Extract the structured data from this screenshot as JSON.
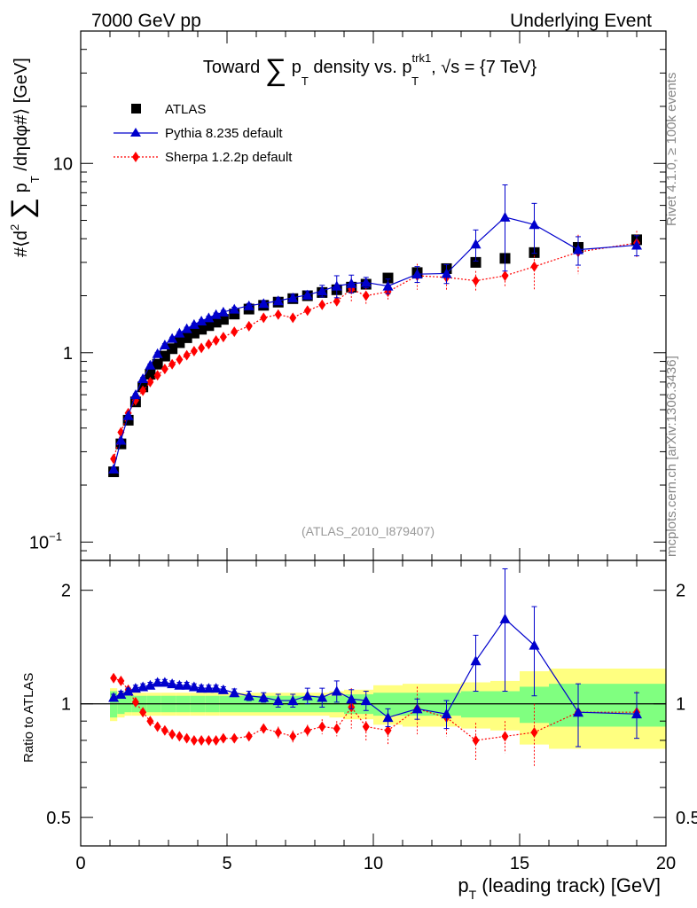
{
  "header": {
    "left": "7000 GeV pp",
    "right": "Underlying Event"
  },
  "side_labels": {
    "rivet": "Rivet 4.1.0, ≥ 100k events",
    "mcplots": "mcplots.cern.ch [arXiv:1306.3436]"
  },
  "chart_data": [
    {
      "type": "scatter",
      "title": "Toward ∑ p_T density vs. p_T^trk1, √s = {7 TeV}",
      "title_parts": {
        "word1": "Toward",
        "sum": "∑",
        "p": "p",
        "sub_T": "T",
        "word2": "density vs.",
        "p2": "p",
        "sup_trk1": "trk1",
        "sub_T2": "T",
        "energy": ", √s = {7 TeV}"
      },
      "ylabel": "#⟨d² ∑ p_T /dηdφ#⟩ [GeV]",
      "ylabel_parts": {
        "prefix": "#⟨d",
        "sq": "2",
        "sum": "∑",
        "p": "p",
        "sub_T": "T",
        "suffix": "/dηdφ#⟩ [GeV]"
      },
      "yscale": "log",
      "ylim": [
        0.08,
        50
      ],
      "xlim": [
        0,
        20
      ],
      "yticks": [
        {
          "value": 0.1,
          "base": "10",
          "exp": "−1"
        },
        {
          "value": 1,
          "base": "1",
          "exp": ""
        },
        {
          "value": 10,
          "base": "10",
          "exp": ""
        }
      ],
      "watermark": "(ATLAS_2010_I879407)",
      "legend": [
        {
          "name": "ATLAS",
          "color": "#000000",
          "marker": "square"
        },
        {
          "name": "Pythia 8.235 default",
          "color": "#0000cc",
          "marker": "triangle"
        },
        {
          "name": "Sherpa 1.2.2p default",
          "color": "#ff0000",
          "marker": "diamond"
        }
      ],
      "series": [
        {
          "name": "ATLAS",
          "color": "#000000",
          "x": [
            1.125,
            1.375,
            1.625,
            1.875,
            2.125,
            2.375,
            2.625,
            2.875,
            3.125,
            3.375,
            3.625,
            3.875,
            4.125,
            4.375,
            4.625,
            4.875,
            5.25,
            5.75,
            6.25,
            6.75,
            7.25,
            7.75,
            8.25,
            8.75,
            9.25,
            9.75,
            10.5,
            11.5,
            12.5,
            13.5,
            14.5,
            15.5,
            17,
            19
          ],
          "y": [
            0.235,
            0.33,
            0.44,
            0.55,
            0.66,
            0.77,
            0.87,
            0.96,
            1.05,
            1.13,
            1.2,
            1.27,
            1.33,
            1.39,
            1.45,
            1.5,
            1.6,
            1.7,
            1.78,
            1.85,
            1.93,
            2.0,
            2.08,
            2.15,
            2.22,
            2.3,
            2.48,
            2.65,
            2.78,
            3.0,
            3.15,
            3.38,
            3.6,
            3.95
          ]
        },
        {
          "name": "Pythia 8.235 default",
          "color": "#0000cc",
          "x": [
            1.125,
            1.375,
            1.625,
            1.875,
            2.125,
            2.375,
            2.625,
            2.875,
            3.125,
            3.375,
            3.625,
            3.875,
            4.125,
            4.375,
            4.625,
            4.875,
            5.25,
            5.75,
            6.25,
            6.75,
            7.25,
            7.75,
            8.25,
            8.75,
            9.25,
            9.75,
            10.5,
            11.5,
            12.5,
            13.5,
            14.5,
            15.5,
            17,
            19
          ],
          "y": [
            0.243,
            0.345,
            0.465,
            0.6,
            0.73,
            0.86,
            0.99,
            1.1,
            1.19,
            1.27,
            1.34,
            1.41,
            1.47,
            1.53,
            1.59,
            1.64,
            1.7,
            1.77,
            1.82,
            1.88,
            1.95,
            2.02,
            2.12,
            2.25,
            2.32,
            2.35,
            2.25,
            2.6,
            2.62,
            3.75,
            5.2,
            4.75,
            3.5,
            3.7
          ],
          "err": [
            0.004,
            0.005,
            0.006,
            0.008,
            0.01,
            0.012,
            0.014,
            0.016,
            0.018,
            0.02,
            0.022,
            0.024,
            0.026,
            0.028,
            0.03,
            0.033,
            0.04,
            0.05,
            0.06,
            0.07,
            0.08,
            0.1,
            0.15,
            0.3,
            0.25,
            0.15,
            0.2,
            0.25,
            0.3,
            0.7,
            2.5,
            1.4,
            0.6,
            0.45
          ]
        },
        {
          "name": "Sherpa 1.2.2p default",
          "color": "#ff0000",
          "x": [
            1.125,
            1.375,
            1.625,
            1.875,
            2.125,
            2.375,
            2.625,
            2.875,
            3.125,
            3.375,
            3.625,
            3.875,
            4.125,
            4.375,
            4.625,
            4.875,
            5.25,
            5.75,
            6.25,
            6.75,
            7.25,
            7.75,
            8.25,
            8.75,
            9.25,
            9.75,
            10.5,
            11.5,
            12.5,
            13.5,
            14.5,
            15.5,
            17,
            19
          ],
          "y": [
            0.275,
            0.38,
            0.48,
            0.56,
            0.63,
            0.7,
            0.76,
            0.82,
            0.87,
            0.92,
            0.97,
            1.02,
            1.06,
            1.11,
            1.16,
            1.21,
            1.29,
            1.38,
            1.53,
            1.59,
            1.53,
            1.67,
            1.79,
            1.87,
            2.17,
            2.0,
            2.1,
            2.55,
            2.5,
            2.4,
            2.55,
            2.85,
            3.4,
            3.8
          ],
          "err": [
            0.005,
            0.006,
            0.007,
            0.008,
            0.009,
            0.01,
            0.011,
            0.012,
            0.013,
            0.014,
            0.015,
            0.016,
            0.017,
            0.018,
            0.02,
            0.022,
            0.03,
            0.04,
            0.05,
            0.06,
            0.07,
            0.09,
            0.1,
            0.12,
            0.3,
            0.2,
            0.22,
            0.4,
            0.35,
            0.3,
            0.3,
            0.7,
            0.8,
            0.6
          ]
        }
      ]
    },
    {
      "type": "scatter",
      "title": "",
      "ylabel": "Ratio to ATLAS",
      "xlabel": "p_T (leading track) [GeV]",
      "xlabel_parts": {
        "p": "p",
        "sub_T": "T",
        "rest": "(leading track) [GeV]"
      },
      "yscale": "log",
      "ylim": [
        0.42,
        2.4
      ],
      "xlim": [
        0,
        20
      ],
      "yticks": [
        {
          "value": 0.5,
          "label": "0.5"
        },
        {
          "value": 1,
          "label": "1"
        },
        {
          "value": 2,
          "label": "2"
        }
      ],
      "xticks": [
        {
          "value": 0,
          "label": "0"
        },
        {
          "value": 5,
          "label": "5"
        },
        {
          "value": 10,
          "label": "10"
        },
        {
          "value": 15,
          "label": "15"
        },
        {
          "value": 20,
          "label": "20"
        }
      ],
      "bands": {
        "edges": [
          1,
          1.25,
          1.5,
          1.75,
          2,
          2.25,
          2.5,
          2.75,
          3,
          3.25,
          3.5,
          3.75,
          4,
          4.25,
          4.5,
          4.75,
          5,
          5.5,
          6,
          6.5,
          7,
          7.5,
          8,
          8.5,
          9,
          9.5,
          10,
          11,
          12,
          13,
          14,
          15,
          16,
          18,
          20
        ],
        "stat": [
          0.08,
          0.06,
          0.05,
          0.05,
          0.05,
          0.05,
          0.05,
          0.05,
          0.05,
          0.05,
          0.05,
          0.05,
          0.05,
          0.05,
          0.05,
          0.05,
          0.05,
          0.05,
          0.05,
          0.05,
          0.05,
          0.05,
          0.05,
          0.05,
          0.06,
          0.06,
          0.07,
          0.07,
          0.07,
          0.08,
          0.08,
          0.11,
          0.13,
          0.13
        ],
        "total": [
          0.1,
          0.08,
          0.07,
          0.07,
          0.07,
          0.07,
          0.07,
          0.07,
          0.07,
          0.07,
          0.07,
          0.07,
          0.07,
          0.07,
          0.07,
          0.07,
          0.07,
          0.07,
          0.07,
          0.07,
          0.07,
          0.07,
          0.07,
          0.08,
          0.09,
          0.09,
          0.12,
          0.13,
          0.13,
          0.14,
          0.15,
          0.22,
          0.24,
          0.24
        ],
        "stat_color": "#80ff80",
        "total_color": "#ffff80"
      },
      "series": [
        {
          "name": "Pythia 8.235 default",
          "color": "#0000cc",
          "x": [
            1.125,
            1.375,
            1.625,
            1.875,
            2.125,
            2.375,
            2.625,
            2.875,
            3.125,
            3.375,
            3.625,
            3.875,
            4.125,
            4.375,
            4.625,
            4.875,
            5.25,
            5.75,
            6.25,
            6.75,
            7.25,
            7.75,
            8.25,
            8.75,
            9.25,
            9.75,
            10.5,
            11.5,
            12.5,
            13.5,
            14.5,
            15.5,
            17,
            19
          ],
          "y": [
            1.04,
            1.06,
            1.08,
            1.1,
            1.11,
            1.12,
            1.14,
            1.14,
            1.13,
            1.12,
            1.12,
            1.11,
            1.1,
            1.1,
            1.1,
            1.09,
            1.07,
            1.05,
            1.04,
            1.02,
            1.02,
            1.05,
            1.04,
            1.08,
            1.03,
            1.02,
            0.92,
            0.97,
            0.94,
            1.3,
            1.68,
            1.43,
            0.95,
            0.94
          ],
          "err": [
            0.02,
            0.02,
            0.02,
            0.02,
            0.02,
            0.02,
            0.02,
            0.02,
            0.02,
            0.02,
            0.02,
            0.02,
            0.02,
            0.02,
            0.02,
            0.02,
            0.025,
            0.03,
            0.03,
            0.04,
            0.04,
            0.05,
            0.06,
            0.07,
            0.06,
            0.06,
            0.05,
            0.06,
            0.08,
            0.22,
            0.6,
            0.38,
            0.18,
            0.13
          ]
        },
        {
          "name": "Sherpa 1.2.2p default",
          "color": "#ff0000",
          "x": [
            1.125,
            1.375,
            1.625,
            1.875,
            2.125,
            2.375,
            2.625,
            2.875,
            3.125,
            3.375,
            3.625,
            3.875,
            4.125,
            4.375,
            4.625,
            4.875,
            5.25,
            5.75,
            6.25,
            6.75,
            7.25,
            7.75,
            8.25,
            8.75,
            9.25,
            9.75,
            10.5,
            11.5,
            12.5,
            13.5,
            14.5,
            15.5,
            17,
            19
          ],
          "y": [
            1.17,
            1.15,
            1.09,
            1.01,
            0.95,
            0.9,
            0.87,
            0.85,
            0.83,
            0.82,
            0.81,
            0.8,
            0.8,
            0.8,
            0.8,
            0.81,
            0.81,
            0.82,
            0.86,
            0.84,
            0.82,
            0.85,
            0.87,
            0.86,
            0.98,
            0.87,
            0.85,
            0.97,
            0.92,
            0.8,
            0.82,
            0.84,
            0.95,
            0.95
          ],
          "err": [
            0.02,
            0.02,
            0.02,
            0.02,
            0.02,
            0.02,
            0.02,
            0.02,
            0.02,
            0.02,
            0.02,
            0.02,
            0.02,
            0.02,
            0.02,
            0.02,
            0.02,
            0.02,
            0.02,
            0.03,
            0.03,
            0.03,
            0.04,
            0.04,
            0.12,
            0.07,
            0.07,
            0.14,
            0.1,
            0.09,
            0.08,
            0.16,
            0.18,
            0.13
          ]
        }
      ]
    }
  ]
}
